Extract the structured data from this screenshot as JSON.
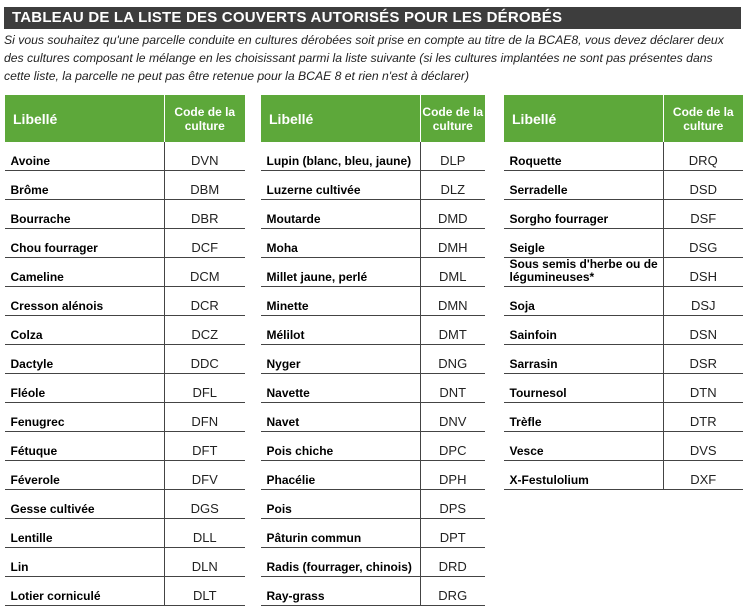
{
  "header": {
    "title": "TABLEAU DE LA LISTE DES COUVERTS AUTORISÉS POUR LES DÉROBÉS",
    "intro": "Si vous souhaitez qu'une parcelle conduite en cultures dérobées soit prise en compte au titre de la BCAE8, vous devez déclarer deux des cultures composant le mélange en les choisissant parmi la liste suivante (si les cultures implantées ne sont pas présentes dans cette liste, la parcelle ne peut pas être retenue pour la BCAE 8 et rien n'est à déclarer)"
  },
  "tables": [
    {
      "columns": [
        "Libellé",
        "Code de la culture"
      ],
      "rows": [
        [
          "Avoine",
          "DVN"
        ],
        [
          "Brôme",
          "DBM"
        ],
        [
          "Bourrache",
          "DBR"
        ],
        [
          "Chou fourrager",
          "DCF"
        ],
        [
          "Cameline",
          "DCM"
        ],
        [
          "Cresson alénois",
          "DCR"
        ],
        [
          "Colza",
          "DCZ"
        ],
        [
          "Dactyle",
          "DDC"
        ],
        [
          "Fléole",
          "DFL"
        ],
        [
          "Fenugrec",
          "DFN"
        ],
        [
          "Fétuque",
          "DFT"
        ],
        [
          "Féverole",
          "DFV"
        ],
        [
          "Gesse cultivée",
          "DGS"
        ],
        [
          "Lentille",
          "DLL"
        ],
        [
          "Lin",
          "DLN"
        ],
        [
          "Lotier corniculé",
          "DLT"
        ]
      ]
    },
    {
      "columns": [
        "Libellé",
        "Code de la culture"
      ],
      "rows": [
        [
          "Lupin (blanc, bleu, jaune)",
          "DLP"
        ],
        [
          "Luzerne cultivée",
          "DLZ"
        ],
        [
          "Moutarde",
          "DMD"
        ],
        [
          "Moha",
          "DMH"
        ],
        [
          "Millet jaune, perlé",
          "DML"
        ],
        [
          "Minette",
          "DMN"
        ],
        [
          "Mélilot",
          "DMT"
        ],
        [
          "Nyger",
          "DNG"
        ],
        [
          "Navette",
          "DNT"
        ],
        [
          "Navet",
          "DNV"
        ],
        [
          "Pois chiche",
          "DPC"
        ],
        [
          "Phacélie",
          "DPH"
        ],
        [
          "Pois",
          "DPS"
        ],
        [
          "Pâturin commun",
          "DPT"
        ],
        [
          "Radis (fourrager, chinois)",
          "DRD"
        ],
        [
          "Ray-grass",
          "DRG"
        ]
      ]
    },
    {
      "columns": [
        "Libellé",
        "Code de la culture"
      ],
      "rows": [
        [
          "Roquette",
          "DRQ"
        ],
        [
          "Serradelle",
          "DSD"
        ],
        [
          "Sorgho fourrager",
          "DSF"
        ],
        [
          "Seigle",
          "DSG"
        ],
        [
          "Sous semis d'herbe ou de légumineuses*",
          "DSH"
        ],
        [
          "Soja",
          "DSJ"
        ],
        [
          "Sainfoin",
          "DSN"
        ],
        [
          "Sarrasin",
          "DSR"
        ],
        [
          "Tournesol",
          "DTN"
        ],
        [
          "Trèfle",
          "DTR"
        ],
        [
          "Vesce",
          "DVS"
        ],
        [
          "X-Festulolium",
          "DXF"
        ]
      ]
    }
  ]
}
